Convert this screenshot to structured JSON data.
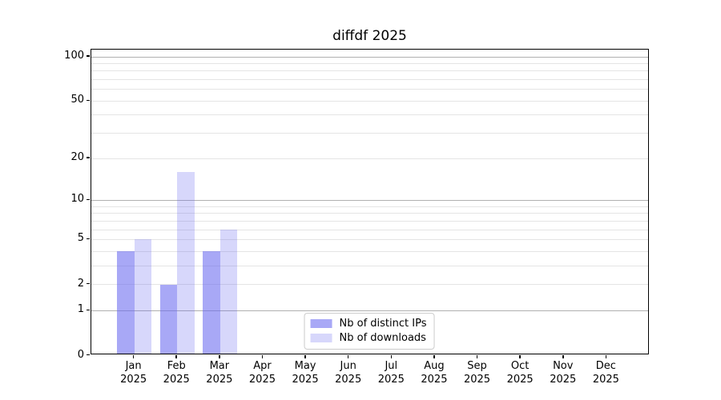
{
  "chart_data": {
    "type": "bar",
    "title": "diffdf 2025",
    "categories": [
      "Jan",
      "Feb",
      "Mar",
      "Apr",
      "May",
      "Jun",
      "Jul",
      "Aug",
      "Sep",
      "Oct",
      "Nov",
      "Dec"
    ],
    "category_year": "2025",
    "series": [
      {
        "name": "Nb of distinct IPs",
        "color": "rgba(102,102,240,0.57)",
        "values": [
          4,
          2,
          4,
          0,
          0,
          0,
          0,
          0,
          0,
          0,
          0,
          0
        ]
      },
      {
        "name": "Nb of downloads",
        "color": "rgba(102,102,240,0.26)",
        "values": [
          5,
          16,
          6,
          0,
          0,
          0,
          0,
          0,
          0,
          0,
          0,
          0
        ]
      }
    ],
    "xlabel": "",
    "ylabel": "",
    "y_scale": "log1p",
    "ylim": [
      0,
      112
    ],
    "y_ticks": [
      0,
      1,
      2,
      5,
      10,
      20,
      50,
      100
    ],
    "y_gridlines_major": [
      1,
      10,
      100
    ],
    "y_gridlines_minor": [
      2,
      3,
      4,
      5,
      6,
      7,
      8,
      9,
      20,
      30,
      40,
      50,
      60,
      70,
      80,
      90
    ],
    "grid": true,
    "legend_position": "lower center",
    "colors": {
      "grid_major": "#b0b0b0",
      "grid_minor": "#e4e4e4",
      "spine": "#000000",
      "background": "#ffffff",
      "bar_distinct_ips": "rgba(102,102,240,0.57)",
      "bar_downloads": "rgba(102,102,240,0.26)",
      "legend_border": "#cccccc"
    }
  }
}
